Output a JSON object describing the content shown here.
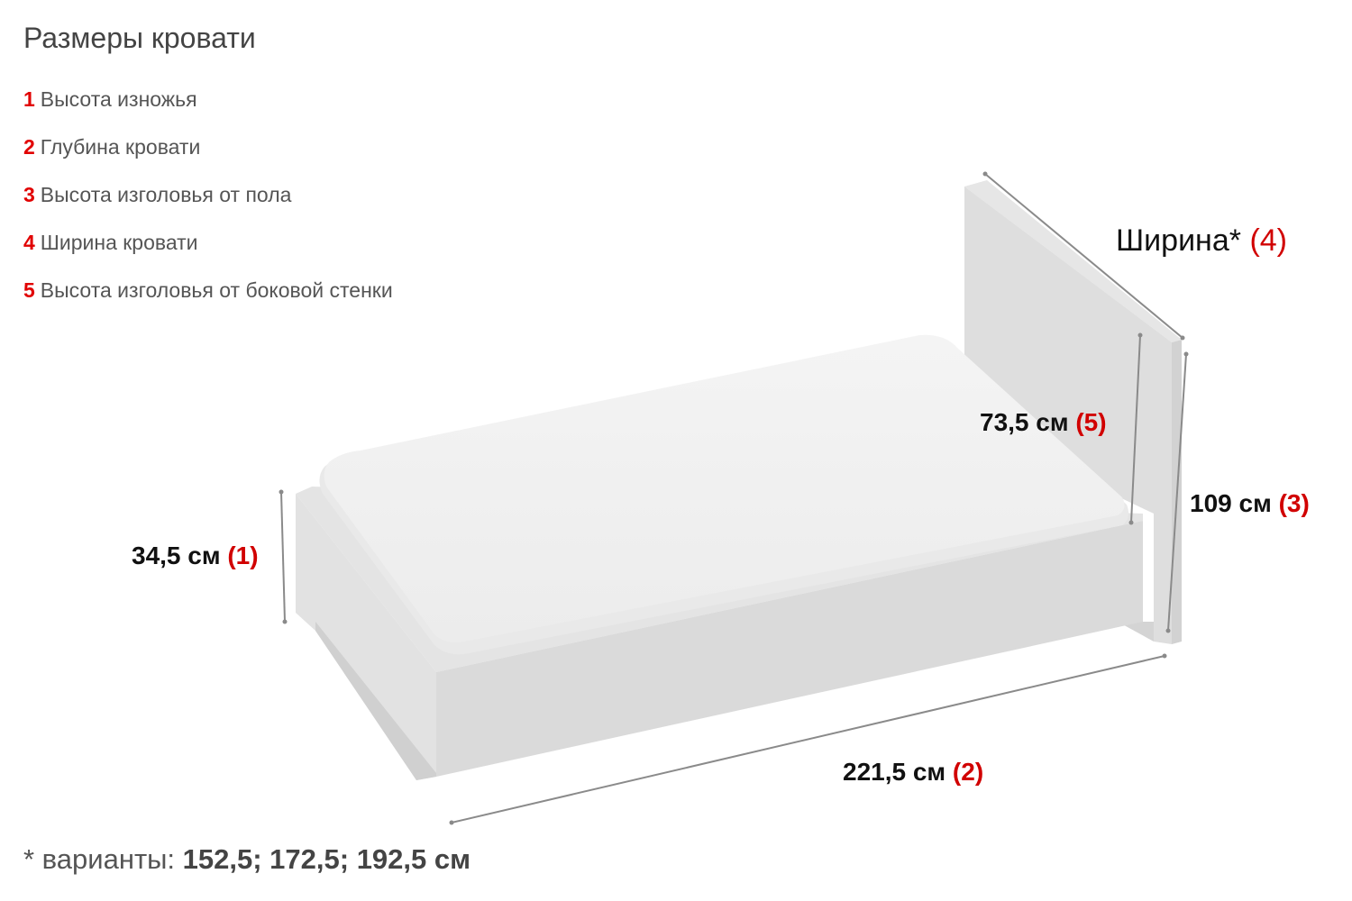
{
  "title": "Размеры кровати",
  "legend": [
    {
      "num": "1",
      "label": "Высота изножья"
    },
    {
      "num": "2",
      "label": "Глубина кровати"
    },
    {
      "num": "3",
      "label": "Высота изголовья от пола"
    },
    {
      "num": "4",
      "label": "Ширина кровати"
    },
    {
      "num": "5",
      "label": "Высота изголовья от боковой стенки"
    }
  ],
  "dimensions": {
    "footboard": {
      "value": "34,5 см",
      "tag": "(1)"
    },
    "depth": {
      "value": "221,5 см",
      "tag": "(2)"
    },
    "headboard_floor": {
      "value": "109 см",
      "tag": "(3)"
    },
    "width": {
      "value": "Ширина*",
      "tag": "(4)"
    },
    "headboard_side": {
      "value": "73,5 см",
      "tag": "(5)"
    }
  },
  "footnote": {
    "prefix": "* варианты: ",
    "values": "152,5; 172,5; 192,5 см"
  }
}
